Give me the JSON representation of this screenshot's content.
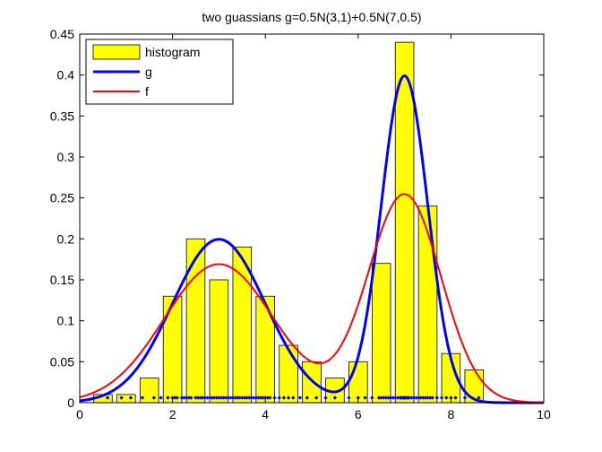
{
  "figure": {
    "background": "#ffffff"
  },
  "chart_data": {
    "type": "bar",
    "title": "two guassians g=0.5N(3,1)+0.5N(7,0.5)",
    "xlabel": "",
    "ylabel": "",
    "xlim": [
      0,
      10
    ],
    "ylim": [
      0,
      0.45
    ],
    "xticks": [
      "0",
      "2",
      "4",
      "6",
      "8",
      "10"
    ],
    "yticks": [
      "0",
      "0.05",
      "0.1",
      "0.15",
      "0.2",
      "0.25",
      "0.3",
      "0.35",
      "0.4",
      "0.45"
    ],
    "grid": false,
    "legend_position": "top-left",
    "histogram": {
      "name": "histogram",
      "color": "#ffff00",
      "edge_color": "#000000",
      "bin_width": 0.5,
      "bar_width": 0.4,
      "centers": [
        0.5,
        1.0,
        1.5,
        2.0,
        2.5,
        3.0,
        3.5,
        4.0,
        4.5,
        5.0,
        5.5,
        6.0,
        6.5,
        7.0,
        7.5,
        8.0,
        8.5
      ],
      "values": [
        0.01,
        0.01,
        0.03,
        0.13,
        0.2,
        0.15,
        0.19,
        0.13,
        0.07,
        0.05,
        0.03,
        0.05,
        0.17,
        0.44,
        0.24,
        0.06,
        0.04
      ]
    },
    "series": [
      {
        "name": "g",
        "color": "#0000ff",
        "line_width": 3,
        "mixture": [
          {
            "weight": 0.5,
            "mean": 3,
            "sd": 1
          },
          {
            "weight": 0.5,
            "mean": 7,
            "sd": 0.5
          }
        ]
      },
      {
        "name": "f",
        "color": "#ff0000",
        "line_width": 2,
        "mixture": [
          {
            "weight": 0.5,
            "mean": 3,
            "sd": 1.18
          },
          {
            "weight": 0.5,
            "mean": 7,
            "sd": 0.785
          }
        ]
      }
    ],
    "samples": {
      "color": "#0000ff",
      "y": 0.006,
      "x": [
        0.3,
        0.6,
        0.9,
        1.1,
        1.35,
        1.6,
        1.75,
        1.9,
        2.0,
        2.05,
        2.1,
        2.2,
        2.25,
        2.3,
        2.35,
        2.4,
        2.5,
        2.55,
        2.6,
        2.65,
        2.7,
        2.75,
        2.8,
        2.85,
        2.9,
        2.95,
        3.0,
        3.05,
        3.1,
        3.15,
        3.2,
        3.25,
        3.3,
        3.35,
        3.4,
        3.45,
        3.5,
        3.55,
        3.6,
        3.65,
        3.7,
        3.75,
        3.8,
        3.85,
        3.9,
        3.95,
        4.0,
        4.05,
        4.1,
        4.2,
        4.3,
        4.4,
        4.5,
        4.6,
        4.75,
        4.9,
        5.1,
        5.3,
        5.5,
        5.8,
        6.0,
        6.15,
        6.3,
        6.45,
        6.5,
        6.55,
        6.6,
        6.65,
        6.7,
        6.75,
        6.8,
        6.85,
        6.9,
        6.92,
        6.95,
        6.98,
        7.0,
        7.02,
        7.05,
        7.08,
        7.1,
        7.15,
        7.2,
        7.25,
        7.3,
        7.35,
        7.4,
        7.45,
        7.5,
        7.55,
        7.6,
        7.7,
        7.8,
        7.9,
        8.0,
        8.1,
        8.3,
        8.6
      ]
    }
  }
}
